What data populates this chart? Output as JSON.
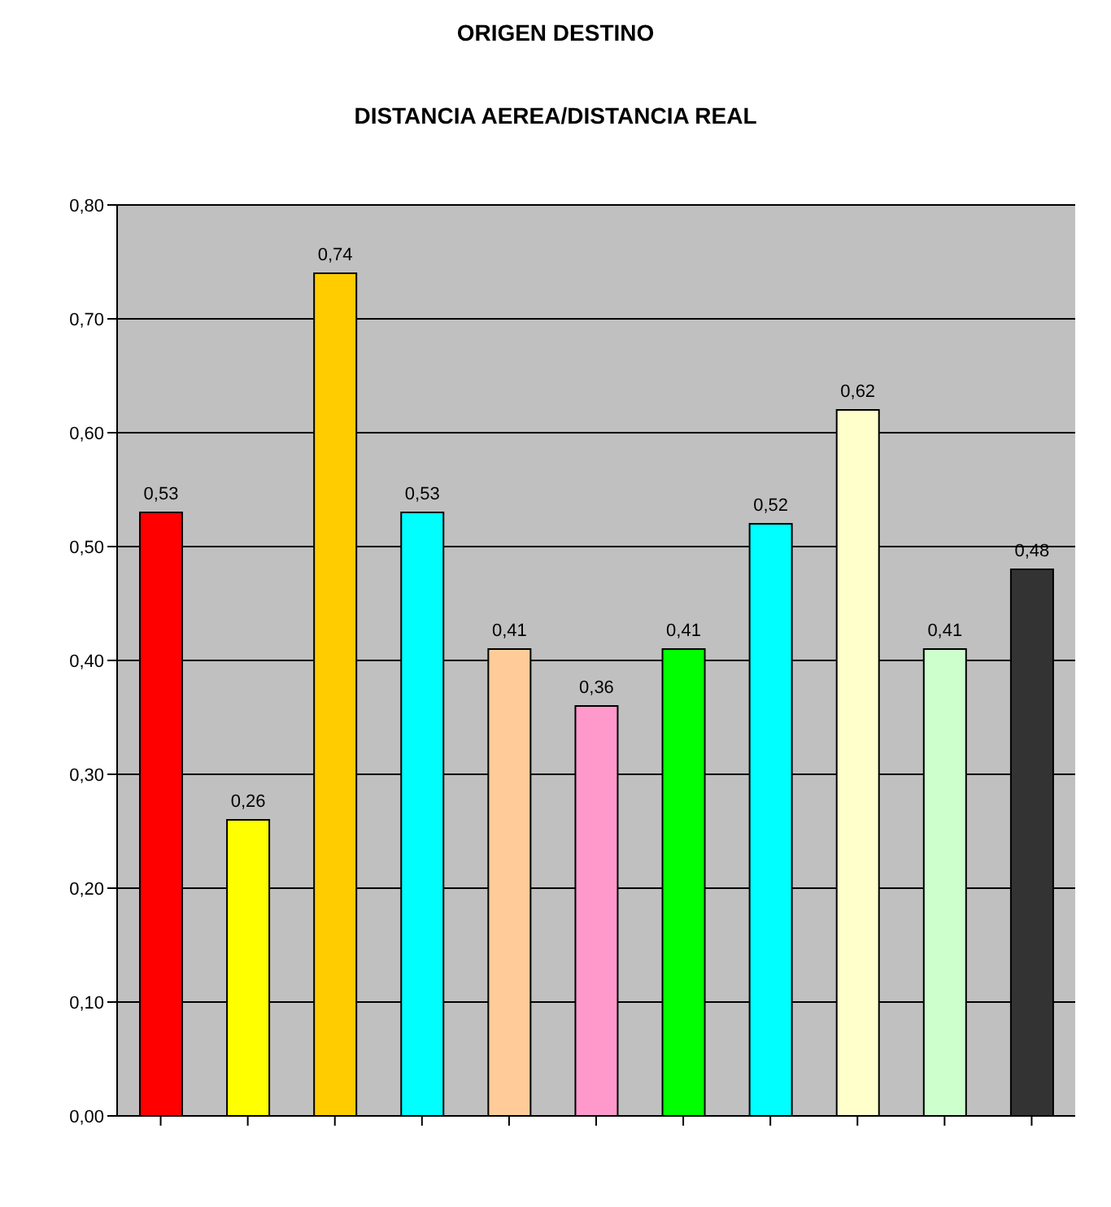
{
  "chart_data": {
    "type": "bar",
    "title": "ORIGEN DESTINO",
    "subtitle": "DISTANCIA AEREA/DISTANCIA REAL",
    "categories": [
      null,
      null,
      null,
      null,
      null,
      null,
      null,
      null,
      null,
      null,
      null
    ],
    "values": [
      0.53,
      0.26,
      0.74,
      0.53,
      0.41,
      0.36,
      0.41,
      0.52,
      0.62,
      0.41,
      0.48
    ],
    "value_labels": [
      "0,53",
      "0,26",
      "0,74",
      "0,53",
      "0,41",
      "0,36",
      "0,41",
      "0,52",
      "0,62",
      "0,41",
      "0,48"
    ],
    "colors": [
      "#ff0000",
      "#ffff00",
      "#ffcc00",
      "#00ffff",
      "#ffcc99",
      "#ff99cc",
      "#00ff00",
      "#00ffff",
      "#ffffcc",
      "#ccffcc",
      "#333333"
    ],
    "ylim": [
      0,
      0.8
    ],
    "yticks": [
      {
        "value": 0,
        "label": "0,00"
      },
      {
        "value": 0.1,
        "label": "0,10"
      },
      {
        "value": 0.2,
        "label": "0,20"
      },
      {
        "value": 0.3,
        "label": "0,30"
      },
      {
        "value": 0.4,
        "label": "0,40"
      },
      {
        "value": 0.5,
        "label": "0,50"
      },
      {
        "value": 0.6,
        "label": "0,60"
      },
      {
        "value": 0.7,
        "label": "0,70"
      },
      {
        "value": 0.8,
        "label": "0,80"
      }
    ],
    "grid": "y"
  }
}
